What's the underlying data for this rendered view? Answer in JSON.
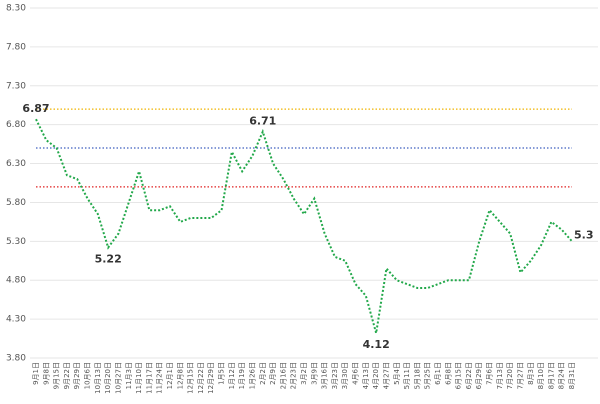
{
  "chart_data": {
    "type": "line",
    "categories": [
      "9月1日",
      "9月8日",
      "9月15日",
      "9月22日",
      "9月29日",
      "10月6日",
      "10月13日",
      "10月20日",
      "10月27日",
      "11月3日",
      "11月10日",
      "11月17日",
      "11月24日",
      "12月1日",
      "12月8日",
      "12月15日",
      "12月22日",
      "12月29日",
      "1月5日",
      "1月12日",
      "1月19日",
      "1月26日",
      "2月2日",
      "2月9日",
      "2月16日",
      "2月23日",
      "3月2日",
      "3月9日",
      "3月16日",
      "3月23日",
      "3月30日",
      "4月6日",
      "4月13日",
      "4月20日",
      "4月27日",
      "5月4日",
      "5月11日",
      "5月18日",
      "5月25日",
      "6月1日",
      "6月8日",
      "6月15日",
      "6月22日",
      "6月29日",
      "7月6日",
      "7月13日",
      "7月20日",
      "7月27日",
      "8月3日",
      "8月10日",
      "8月17日",
      "8月24日",
      "8月31日"
    ],
    "series": [
      {
        "color": "#22a84a",
        "values": [
          6.87,
          6.6,
          6.5,
          6.15,
          6.1,
          5.85,
          5.65,
          5.22,
          5.4,
          5.8,
          6.2,
          5.7,
          5.7,
          5.75,
          5.55,
          5.6,
          5.6,
          5.6,
          5.7,
          6.45,
          6.2,
          6.4,
          6.71,
          6.3,
          6.1,
          5.85,
          5.65,
          5.85,
          5.4,
          5.1,
          5.05,
          4.75,
          4.6,
          4.12,
          4.95,
          4.8,
          4.75,
          4.7,
          4.7,
          4.75,
          4.8,
          4.8,
          4.8,
          5.3,
          5.7,
          5.55,
          5.4,
          4.9,
          5.05,
          5.25,
          5.55,
          5.45,
          5.3
        ],
        "value_labels": [
          "6.87",
          null,
          null,
          null,
          null,
          null,
          null,
          "5.22",
          null,
          null,
          null,
          null,
          null,
          null,
          null,
          null,
          null,
          null,
          null,
          null,
          null,
          null,
          "6.71",
          null,
          null,
          null,
          null,
          null,
          null,
          null,
          null,
          null,
          null,
          "4.12",
          null,
          null,
          null,
          null,
          null,
          null,
          null,
          null,
          null,
          null,
          null,
          null,
          null,
          null,
          null,
          null,
          null,
          null,
          "5.3"
        ]
      }
    ],
    "reference_lines": [
      {
        "value": 7.0,
        "color": "#f0b400"
      },
      {
        "value": 6.5,
        "color": "#3f5fbf"
      },
      {
        "value": 6.0,
        "color": "#e02020"
      }
    ],
    "ylim": [
      3.8,
      8.3
    ],
    "yticks": [
      {
        "value": 3.8,
        "label": "3.80"
      },
      {
        "value": 4.3,
        "label": "4.30"
      },
      {
        "value": 4.8,
        "label": "4.80"
      },
      {
        "value": 5.3,
        "label": "5.30"
      },
      {
        "value": 5.8,
        "label": "5.80"
      },
      {
        "value": 6.3,
        "label": "6.30"
      },
      {
        "value": 6.8,
        "label": "6.80"
      },
      {
        "value": 7.3,
        "label": "7.30"
      },
      {
        "value": 7.8,
        "label": "7.80"
      },
      {
        "value": 8.3,
        "label": "8.30"
      }
    ],
    "grid": true
  }
}
